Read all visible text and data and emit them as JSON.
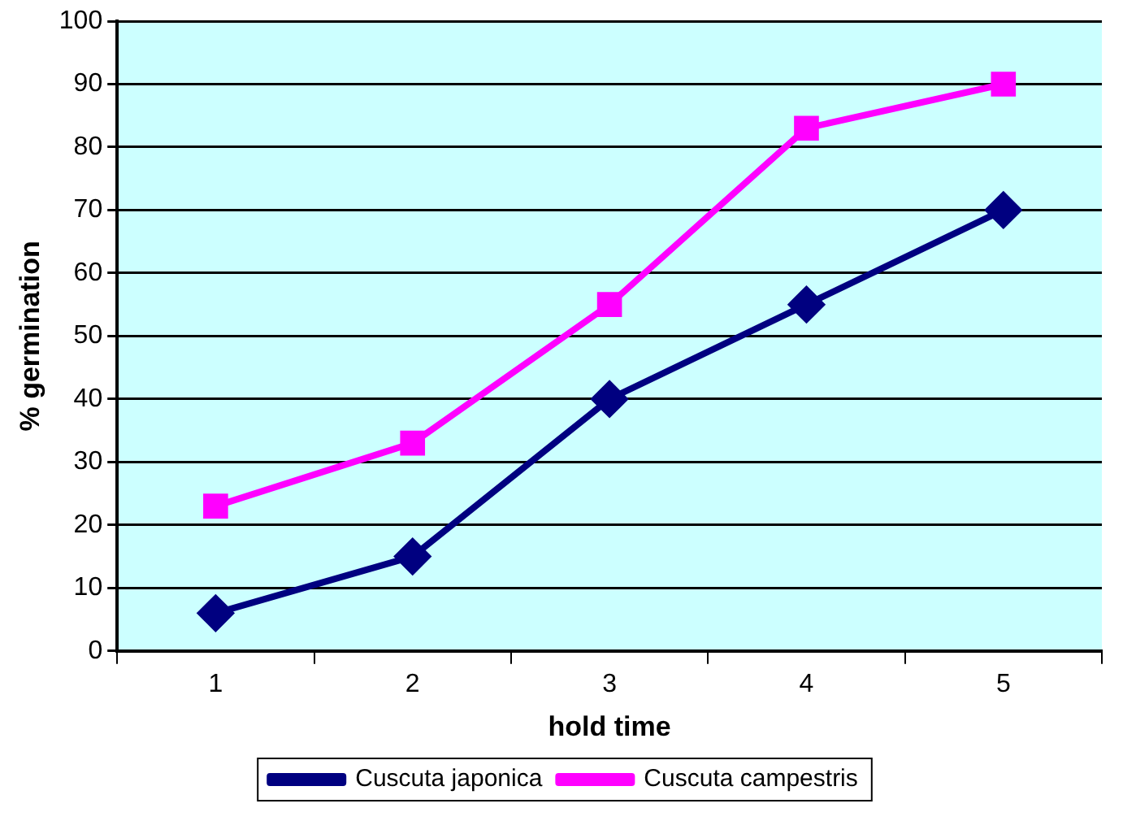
{
  "chart_data": {
    "type": "line",
    "xlabel": "hold time",
    "ylabel": "% germination",
    "categories": [
      "1",
      "2",
      "3",
      "4",
      "5"
    ],
    "series": [
      {
        "name": "Cuscuta japonica",
        "color": "#000080",
        "marker": "diamond",
        "values": [
          6,
          15,
          40,
          55,
          70
        ]
      },
      {
        "name": "Cuscuta campestris",
        "color": "#ff00ff",
        "marker": "square",
        "values": [
          23,
          33,
          55,
          83,
          90
        ]
      }
    ],
    "ylim": [
      0,
      100
    ],
    "yticks": [
      0,
      10,
      20,
      30,
      40,
      50,
      60,
      70,
      80,
      90,
      100
    ],
    "grid": "y",
    "legend": "bottom",
    "line_style": "solid"
  }
}
